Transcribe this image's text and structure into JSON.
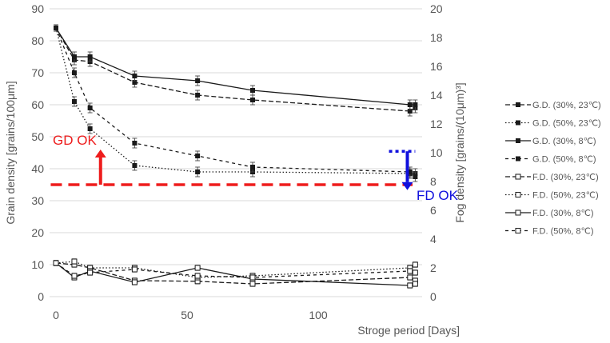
{
  "chart_data": {
    "type": "line",
    "title": "",
    "xlabel": "Stroge period [Days]",
    "ylabel": "Grain density [grains/100μm]",
    "y2label": "Fog density [grains/(10μm)³]",
    "xlim": [
      -2,
      140
    ],
    "ylim": [
      0,
      90
    ],
    "y2lim": [
      0,
      20
    ],
    "xticks": [
      "0",
      "50",
      "100"
    ],
    "yticks": [
      "0",
      "10",
      "20",
      "30",
      "40",
      "50",
      "60",
      "70",
      "80",
      "90"
    ],
    "y2ticks": [
      "0",
      "2",
      "4",
      "6",
      "8",
      "10",
      "12",
      "14",
      "16",
      "18",
      "20"
    ],
    "grid": "horizontal",
    "legend_position": "right",
    "series": [
      {
        "name": "G.D. (30%, 23℃)",
        "axis": "left",
        "dash": "6,3",
        "marker": "filled",
        "x": [
          0,
          7,
          13,
          30,
          54,
          75,
          135,
          137
        ],
        "y": [
          84,
          74,
          73.5,
          67,
          63,
          61.5,
          58,
          59
        ],
        "err": [
          1,
          1.5,
          1.5,
          1.5,
          1.5,
          1.5,
          1.5,
          1.5
        ]
      },
      {
        "name": "G.D. (50%, 23℃)",
        "axis": "left",
        "dash": "1.5,2.5",
        "marker": "filled",
        "x": [
          0,
          7,
          13,
          30,
          54,
          75,
          135,
          137
        ],
        "y": [
          84,
          61,
          52.5,
          41,
          39,
          39,
          38.5,
          38.5
        ],
        "err": [
          1,
          1.5,
          1.5,
          1.5,
          1.5,
          1.5,
          1.5,
          1.5
        ]
      },
      {
        "name": "G.D. (30%, 8℃)",
        "axis": "left",
        "dash": "",
        "marker": "filled",
        "x": [
          0,
          7,
          13,
          30,
          54,
          75,
          135,
          137
        ],
        "y": [
          84,
          75,
          75,
          69,
          67.5,
          64.5,
          60,
          60
        ],
        "err": [
          1,
          1.5,
          1.5,
          1.5,
          1.5,
          1.5,
          1.5,
          1.5
        ]
      },
      {
        "name": "G.D. (50%, 8℃)",
        "axis": "left",
        "dash": "4,4",
        "marker": "filled",
        "x": [
          0,
          7,
          13,
          30,
          54,
          75,
          135,
          137
        ],
        "y": [
          84,
          70,
          59,
          48,
          44,
          40.5,
          39,
          37.5
        ],
        "err": [
          1,
          1.5,
          1.5,
          1.5,
          1.5,
          1.5,
          1.5,
          1.5
        ]
      },
      {
        "name": "F.D. (30%, 23℃)",
        "axis": "left",
        "dash": "6,3",
        "marker": "open",
        "x": [
          0,
          7,
          13,
          30,
          54,
          75,
          135,
          137
        ],
        "y": [
          10.5,
          10,
          9,
          5,
          4.8,
          4,
          6,
          5
        ],
        "err": [
          0.8,
          0.8,
          0.8,
          0.8,
          0.8,
          0.8,
          0.8,
          0.8
        ]
      },
      {
        "name": "F.D. (50%, 23℃)",
        "axis": "left",
        "dash": "1.5,2.5",
        "marker": "open",
        "x": [
          0,
          7,
          13,
          30,
          54,
          75,
          135,
          137
        ],
        "y": [
          10.5,
          11,
          9,
          9,
          6,
          6.5,
          9,
          10
        ],
        "err": [
          0.8,
          0.8,
          0.8,
          0.8,
          0.8,
          0.8,
          0.8,
          0.8
        ]
      },
      {
        "name": "F.D. (30%, 8℃)",
        "axis": "left",
        "dash": "",
        "marker": "open",
        "x": [
          0,
          7,
          13,
          30,
          54,
          75,
          135,
          137
        ],
        "y": [
          10.5,
          6,
          8,
          4.5,
          9,
          5.5,
          3.5,
          4
        ],
        "err": [
          0.8,
          0.8,
          0.8,
          0.8,
          0.8,
          0.8,
          0.8,
          0.8
        ]
      },
      {
        "name": "F.D. (50%, 8℃)",
        "axis": "left",
        "dash": "4,4",
        "marker": "open",
        "x": [
          0,
          7,
          13,
          30,
          54,
          75,
          135,
          137
        ],
        "y": [
          10.5,
          6.5,
          7.5,
          8.5,
          6.5,
          6,
          8,
          7.5
        ],
        "err": [
          0.8,
          0.8,
          0.8,
          0.8,
          0.8,
          0.8,
          0.8,
          0.8
        ]
      }
    ],
    "annotations": {
      "gd_ok": {
        "text": "GD OK",
        "color": "#ee1c1c",
        "threshold_y": 35,
        "arrow_x": 17,
        "arrow_from_y": 35,
        "arrow_to_y": 46,
        "line_x": [
          -2,
          136
        ]
      },
      "fd_ok": {
        "text": "FD OK",
        "color": "#1010dd",
        "threshold_y2": 10.1,
        "arrow_x": 134,
        "arrow_from_y2": 10.1,
        "arrow_to_y2": 7.4,
        "line_x": [
          127,
          137
        ]
      }
    }
  }
}
